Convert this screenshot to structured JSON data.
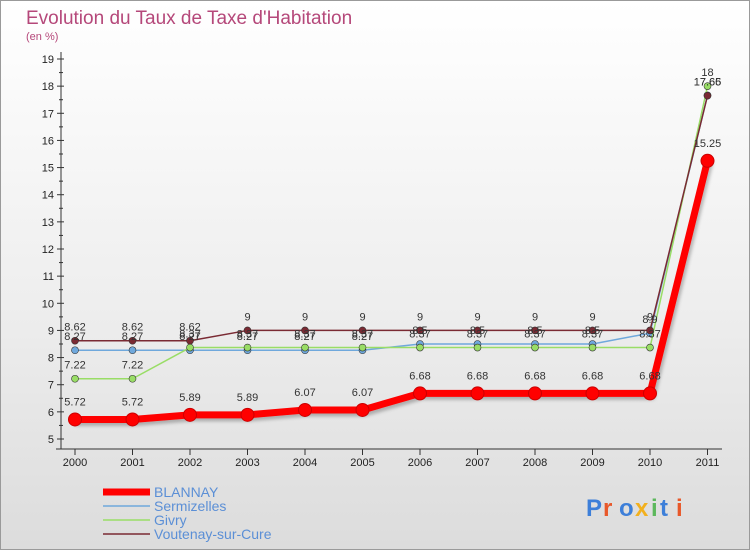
{
  "chart_data": {
    "type": "line",
    "title": "Evolution du Taux de Taxe d'Habitation",
    "subtitle": "(en %)",
    "xlabel": "",
    "ylabel": "",
    "ylim": [
      5,
      19
    ],
    "yticks": [
      "5",
      "6",
      "7",
      "8",
      "9",
      "10",
      "11",
      "12",
      "13",
      "14",
      "15",
      "16",
      "17",
      "18",
      "19"
    ],
    "categories": [
      "2000",
      "2001",
      "2002",
      "2003",
      "2004",
      "2005",
      "2006",
      "2007",
      "2008",
      "2009",
      "2010",
      "2011"
    ],
    "grid": false,
    "legend": "bottom-left",
    "series": [
      {
        "name": "BLANNAY",
        "color": "#ff0000",
        "values": [
          5.72,
          5.72,
          5.89,
          5.89,
          6.07,
          6.07,
          6.68,
          6.68,
          6.68,
          6.68,
          6.68,
          15.25
        ],
        "labels": [
          "5.72",
          "5.72",
          "5.89",
          "5.89",
          "6.07",
          "6.07",
          "6.68",
          "6.68",
          "6.68",
          "6.68",
          "6.68",
          "15.25"
        ]
      },
      {
        "name": "Sermizelles",
        "color": "#6fa8dc",
        "values": [
          8.27,
          8.27,
          8.27,
          8.27,
          8.27,
          8.27,
          8.5,
          8.5,
          8.5,
          8.5,
          8.9,
          17.66
        ],
        "labels": [
          "8.27",
          "8.27",
          "8.27",
          "8.27",
          "8.27",
          "8.27",
          "8.5",
          "8.5",
          "8.5",
          "8.5",
          "8.9",
          "17.66"
        ]
      },
      {
        "name": "Givry",
        "color": "#99dd66",
        "values": [
          7.22,
          7.22,
          8.37,
          8.37,
          8.37,
          8.37,
          8.37,
          8.37,
          8.37,
          8.37,
          8.37,
          18
        ],
        "labels": [
          "7.22",
          "7.22",
          "8.37",
          "8.37",
          "8.37",
          "8.37",
          "8.37",
          "8.37",
          "8.37",
          "8.37",
          "8.37",
          "18"
        ]
      },
      {
        "name": "Voutenay-sur-Cure",
        "color": "#7a2a33",
        "values": [
          8.62,
          8.62,
          8.62,
          9,
          9,
          9,
          9,
          9,
          9,
          9,
          9,
          17.65
        ],
        "labels": [
          "8.62",
          "8.62",
          "8.62",
          "9",
          "9",
          "9",
          "9",
          "9",
          "9",
          "9",
          "9",
          "17.65"
        ]
      }
    ]
  },
  "logo_text": "Proxiti"
}
